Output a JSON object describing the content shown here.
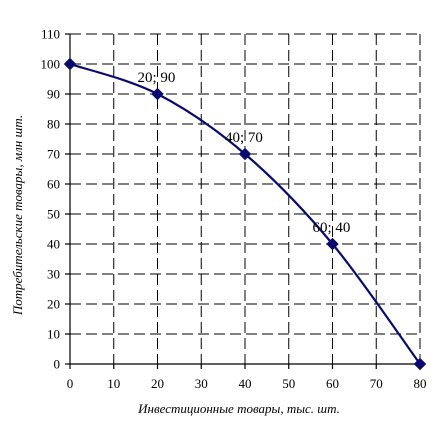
{
  "chart_data": {
    "type": "line",
    "title": "",
    "xlabel": "Инвестиционные товары, тыс. шт.",
    "ylabel": "Потребительские товары, млн шт.",
    "xlim": [
      0,
      80
    ],
    "ylim": [
      0,
      110
    ],
    "x_ticks": [
      0,
      10,
      20,
      30,
      40,
      50,
      60,
      70,
      80
    ],
    "y_ticks": [
      0,
      10,
      20,
      30,
      40,
      50,
      60,
      70,
      80,
      90,
      100,
      110
    ],
    "grid": true,
    "series": [
      {
        "color": "#0a0a6e",
        "marker": "diamond",
        "points": [
          {
            "x": 0,
            "y": 100,
            "label": ""
          },
          {
            "x": 20,
            "y": 90,
            "label": "20; 90"
          },
          {
            "x": 40,
            "y": 70,
            "label": "40; 70"
          },
          {
            "x": 60,
            "y": 40,
            "label": "60; 40"
          },
          {
            "x": 80,
            "y": 0,
            "label": ""
          }
        ]
      }
    ]
  }
}
